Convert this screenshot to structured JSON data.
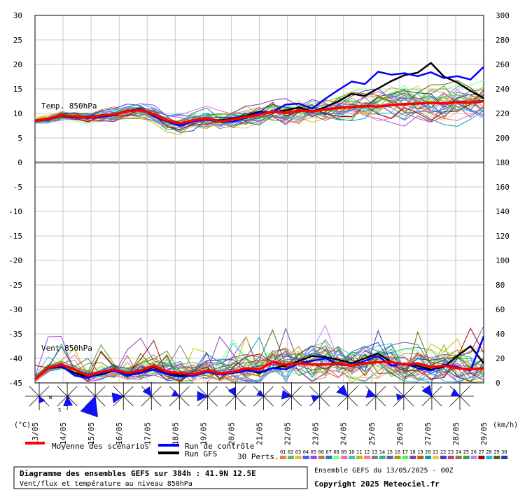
{
  "chart_data": {
    "type": "line",
    "title": "Diagramme des ensembles GEFS sur 384h : 41.9N 12.5E",
    "subtitle": "Vent/flux et température au niveau 850hPa",
    "run_label": "Ensemble GEFS du 13/05/2025 - 00Z",
    "copyright": "Copyright 2025 Meteociel.fr",
    "x_tick_labels": [
      "13/05",
      "14/05",
      "15/05",
      "16/05",
      "17/05",
      "18/05",
      "19/05",
      "20/05",
      "21/05",
      "22/05",
      "23/05",
      "24/05",
      "25/05",
      "26/05",
      "27/05",
      "28/05",
      "29/05"
    ],
    "left_axis": {
      "label": "(°C)",
      "ticks": [
        30,
        25,
        20,
        15,
        10,
        5,
        0,
        -5,
        -10,
        -15,
        -20,
        -25,
        -30,
        -35,
        -40,
        -45
      ],
      "ylim": [
        -45,
        30
      ]
    },
    "right_axis": {
      "label": "(km/h)",
      "ticks": [
        300,
        280,
        260,
        240,
        220,
        200,
        180,
        160,
        140,
        120,
        100,
        80,
        60,
        40,
        20,
        0
      ]
    },
    "panels": [
      {
        "name": "Temp. 850hPa",
        "unit": "°C"
      },
      {
        "name": "Vent 850hPa",
        "unit": "km/h"
      }
    ],
    "legend": {
      "mean_label": "Moyenne des scénarios",
      "control_label": "Run de contrôle",
      "gfs_label": "Run GFS",
      "perts_label": "30 Perts.",
      "pert_numbers": [
        "01",
        "02",
        "03",
        "04",
        "05",
        "06",
        "07",
        "08",
        "09",
        "10",
        "11",
        "12",
        "13",
        "14",
        "15",
        "16",
        "17",
        "18",
        "19",
        "20",
        "21",
        "22",
        "23",
        "24",
        "25",
        "26",
        "27",
        "28",
        "29",
        "30"
      ],
      "pert_colors": [
        "#f08030",
        "#60c060",
        "#f0c020",
        "#4060ff",
        "#a040ff",
        "#c08040",
        "#2080c0",
        "#80ff80",
        "#ff60c0",
        "#40c0c0",
        "#c0c000",
        "#ff8080",
        "#808080",
        "#20c080",
        "#6060a0",
        "#a0a000",
        "#40ff40",
        "#8040c0",
        "#c06000",
        "#00a0a0",
        "#ffc040",
        "#4040c0",
        "#c04080",
        "#808040",
        "#40a040",
        "#c080ff",
        "#a00000",
        "#00c0ff",
        "#606000",
        "#2040a0"
      ]
    },
    "colors": {
      "mean": "#ff0000",
      "control": "#0000ff",
      "gfs": "#000000"
    },
    "series": [
      {
        "name": "Moyenne des scénarios",
        "panel": "temp",
        "values": [
          8.5,
          8.9,
          9.6,
          9.4,
          9.1,
          9.6,
          9.8,
          10.4,
          10.7,
          9.8,
          8.5,
          8.0,
          8.6,
          8.9,
          8.4,
          8.7,
          9.3,
          9.7,
          10.4,
          10.1,
          10.6,
          10.4,
          10.8,
          11.1,
          11.3,
          11.5,
          11.4,
          11.7,
          11.9,
          12.0,
          12.2,
          12.0,
          12.3,
          12.2,
          12.5
        ]
      },
      {
        "name": "Run de contrôle",
        "panel": "temp",
        "values": [
          8.5,
          8.7,
          9.5,
          9.3,
          9.0,
          9.3,
          9.6,
          10.5,
          11.0,
          9.4,
          8.3,
          7.5,
          8.4,
          8.7,
          8.3,
          8.3,
          9.1,
          10.2,
          10.3,
          11.8,
          12.0,
          11.0,
          13.0,
          14.8,
          16.5,
          16.0,
          18.5,
          17.9,
          18.2,
          17.6,
          18.4,
          17.2,
          17.6,
          16.9,
          19.5
        ]
      },
      {
        "name": "Run GFS",
        "panel": "temp",
        "values": [
          8.5,
          8.8,
          9.4,
          9.2,
          9.3,
          9.5,
          9.8,
          10.4,
          10.8,
          9.6,
          8.6,
          7.9,
          8.6,
          8.8,
          8.6,
          8.9,
          9.5,
          10.3,
          10.2,
          10.6,
          11.2,
          10.4,
          11.3,
          12.5,
          14.0,
          13.6,
          15.1,
          16.6,
          17.8,
          18.3,
          20.3,
          17.5,
          16.3,
          14.6,
          13.1
        ]
      },
      {
        "name": "Moyenne des scénarios",
        "panel": "wind",
        "values": [
          3,
          12,
          15,
          11,
          6,
          9,
          11,
          8,
          10,
          14,
          9,
          8,
          7,
          10,
          8,
          9,
          12,
          11,
          17,
          15,
          16,
          15,
          15,
          16,
          14,
          16,
          17,
          17,
          15,
          16,
          13,
          14,
          12,
          11,
          12
        ]
      },
      {
        "name": "Run de contrôle",
        "panel": "wind",
        "values": [
          3,
          12,
          14,
          6,
          4,
          8,
          10,
          6,
          8,
          11,
          7,
          5,
          6,
          9,
          7,
          8,
          10,
          9,
          12,
          11,
          16,
          18,
          20,
          15,
          14,
          18,
          22,
          14,
          16,
          12,
          10,
          15,
          13,
          10,
          38
        ]
      },
      {
        "name": "Run GFS",
        "panel": "wind",
        "values": [
          3,
          12,
          13,
          8,
          5,
          7,
          10,
          7,
          9,
          13,
          8,
          6,
          7,
          9,
          8,
          9,
          11,
          8,
          12,
          14,
          18,
          22,
          21,
          19,
          16,
          20,
          24,
          17,
          15,
          14,
          11,
          13,
          22,
          30,
          16
        ]
      }
    ]
  }
}
